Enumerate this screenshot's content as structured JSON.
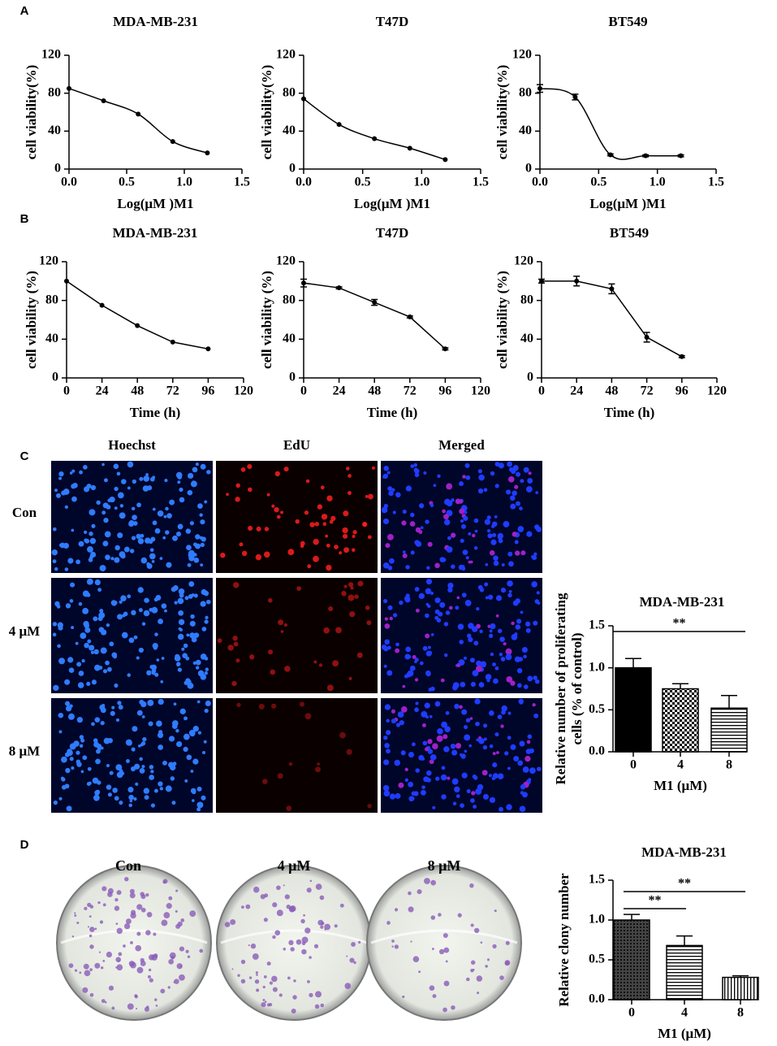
{
  "panel_labels": [
    "A",
    "B",
    "C",
    "D"
  ],
  "chart_data": [
    {
      "type": "line",
      "smooth": true,
      "title": "MDA-MB-231",
      "xlabel": "Log(μM )M1",
      "ylabel": "cell viability(%)",
      "x": [
        0,
        0.3,
        0.6,
        0.9,
        1.2
      ],
      "values": [
        85,
        72,
        58,
        29,
        17
      ],
      "xlim": [
        0,
        1.5
      ],
      "ylim": [
        0,
        120
      ],
      "xticks": [
        {
          "value": 0,
          "label": "0.0"
        },
        0.5,
        {
          "value": 1,
          "label": "1.0"
        },
        1.5
      ],
      "yticks": [
        0,
        40,
        80,
        120
      ],
      "color": "#000000"
    },
    {
      "type": "line",
      "smooth": true,
      "title": "T47D",
      "xlabel": "Log(μM )M1",
      "ylabel": "cell viability(%)",
      "x": [
        0,
        0.3,
        0.6,
        0.9,
        1.2
      ],
      "values": [
        74,
        47,
        32,
        22,
        10
      ],
      "xlim": [
        0,
        1.5
      ],
      "ylim": [
        0,
        120
      ],
      "xticks": [
        {
          "value": 0,
          "label": "0.0"
        },
        0.5,
        {
          "value": 1,
          "label": "1.0"
        },
        1.5
      ],
      "yticks": [
        0,
        40,
        80,
        120
      ],
      "color": "#000000"
    },
    {
      "type": "line",
      "smooth": true,
      "title": "BT549",
      "xlabel": "Log(μM )M1",
      "ylabel": "cell viability(%)",
      "x": [
        0,
        0.3,
        0.6,
        0.9,
        1.2
      ],
      "values": [
        85,
        76,
        15,
        14,
        14
      ],
      "errors": [
        4,
        3,
        1,
        1,
        1
      ],
      "xlim": [
        0,
        1.5
      ],
      "ylim": [
        0,
        120
      ],
      "xticks": [
        {
          "value": 0,
          "label": "0.0"
        },
        0.5,
        {
          "value": 1,
          "label": "1.0"
        },
        1.5
      ],
      "yticks": [
        0,
        40,
        80,
        120
      ],
      "color": "#000000"
    },
    {
      "type": "line",
      "smooth": false,
      "title": "MDA-MB-231",
      "xlabel": "Time (h)",
      "ylabel": "cell viability (%)",
      "x": [
        0,
        24,
        48,
        72,
        96
      ],
      "values": [
        100,
        75,
        54,
        37,
        30
      ],
      "xlim": [
        0,
        120
      ],
      "ylim": [
        0,
        120
      ],
      "xticks": [
        0,
        24,
        48,
        72,
        96,
        120
      ],
      "yticks": [
        0,
        40,
        80,
        120
      ],
      "color": "#000000"
    },
    {
      "type": "line",
      "smooth": false,
      "title": "T47D",
      "xlabel": "Time (h)",
      "ylabel": "cell viability (%)",
      "x": [
        0,
        24,
        48,
        72,
        96
      ],
      "values": [
        98,
        93,
        78,
        63,
        30
      ],
      "errors": [
        4,
        1,
        3,
        1,
        1
      ],
      "xlim": [
        0,
        120
      ],
      "ylim": [
        0,
        120
      ],
      "xticks": [
        0,
        24,
        48,
        72,
        96,
        120
      ],
      "yticks": [
        0,
        40,
        80,
        120
      ],
      "color": "#000000"
    },
    {
      "type": "line",
      "smooth": false,
      "title": "BT549",
      "xlabel": "Time (h)",
      "ylabel": "cell viability (%)",
      "x": [
        0,
        24,
        48,
        72,
        96
      ],
      "values": [
        100,
        100,
        92,
        42,
        22
      ],
      "errors": [
        2,
        5,
        5,
        5,
        1
      ],
      "xlim": [
        0,
        120
      ],
      "ylim": [
        0,
        120
      ],
      "xticks": [
        0,
        24,
        48,
        72,
        96,
        120
      ],
      "yticks": [
        0,
        40,
        80,
        120
      ],
      "color": "#000000"
    },
    {
      "type": "bar",
      "title": "MDA-MB-231",
      "xlabel": "M1 (μM)",
      "ylabel": [
        "Relative number of proliferating",
        "cells (% of control)"
      ],
      "categories": [
        "0",
        "4",
        "8"
      ],
      "values": [
        1.0,
        0.75,
        0.52
      ],
      "errors": [
        0.11,
        0.06,
        0.15
      ],
      "ylim": [
        0,
        1.5
      ],
      "yticks": [
        {
          "value": 0,
          "label": "0.0"
        },
        0.5,
        {
          "value": 1,
          "label": "1.0"
        },
        1.5
      ],
      "patterns": [
        "solid",
        "checker",
        "hlines"
      ],
      "annotations": [
        "**"
      ]
    },
    {
      "type": "bar",
      "title": "MDA-MB-231",
      "xlabel": "M1 (μM)",
      "ylabel": [
        "Relative clony number"
      ],
      "categories": [
        "0",
        "4",
        "8"
      ],
      "values": [
        1.0,
        0.68,
        0.28
      ],
      "errors": [
        0.07,
        0.12,
        0.02
      ],
      "ylim": [
        0,
        1.5
      ],
      "yticks": [
        {
          "value": 0,
          "label": "0.0"
        },
        0.5,
        {
          "value": 1,
          "label": "1.0"
        },
        1.5
      ],
      "patterns": [
        "cross",
        "hlines",
        "vlines"
      ],
      "annotations": [
        "**",
        "**"
      ]
    }
  ],
  "images_c": {
    "columns": [
      "Hoechst",
      "EdU",
      "Merged"
    ],
    "rows": [
      "Con",
      "4 μM",
      "8 μM"
    ]
  },
  "images_d": {
    "labels": [
      "Con",
      "4 μM",
      "8 μM"
    ]
  }
}
